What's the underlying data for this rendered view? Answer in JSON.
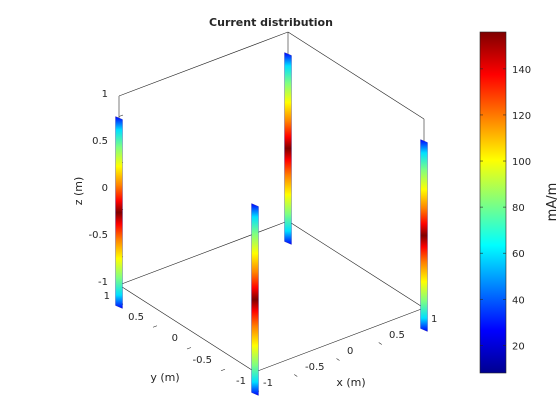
{
  "chart_data": {
    "type": "surface-3d",
    "title": "Current distribution",
    "xlabel": "x (m)",
    "ylabel": "y (m)",
    "zlabel": "z (m)",
    "xlim": [
      -1,
      1
    ],
    "ylim": [
      -1,
      1
    ],
    "zlim": [
      -1,
      1
    ],
    "x_ticks": [
      "-1",
      "-0.5",
      "0",
      "0.5",
      "1"
    ],
    "y_ticks": [
      "-1",
      "-0.5",
      "0",
      "0.5",
      "1"
    ],
    "z_ticks": [
      "-1",
      "-0.5",
      "0",
      "0.5",
      "1"
    ],
    "colormap": "jet",
    "colorbar": {
      "label": "mA/m",
      "limits": [
        8,
        156
      ],
      "ticks": [
        "20",
        "40",
        "60",
        "80",
        "100",
        "120",
        "140"
      ]
    },
    "dipoles": [
      {
        "x": -1,
        "y": 1,
        "z_range": [
          -1,
          1
        ],
        "peak_current": 156
      },
      {
        "x": 1,
        "y": 1,
        "z_range": [
          -1,
          1
        ],
        "peak_current": 156
      },
      {
        "x": 1,
        "y": -1,
        "z_range": [
          -1,
          1
        ],
        "peak_current": 156
      },
      {
        "x": -1,
        "y": -1,
        "z_range": [
          -1,
          1
        ],
        "peak_current": 156
      }
    ]
  }
}
